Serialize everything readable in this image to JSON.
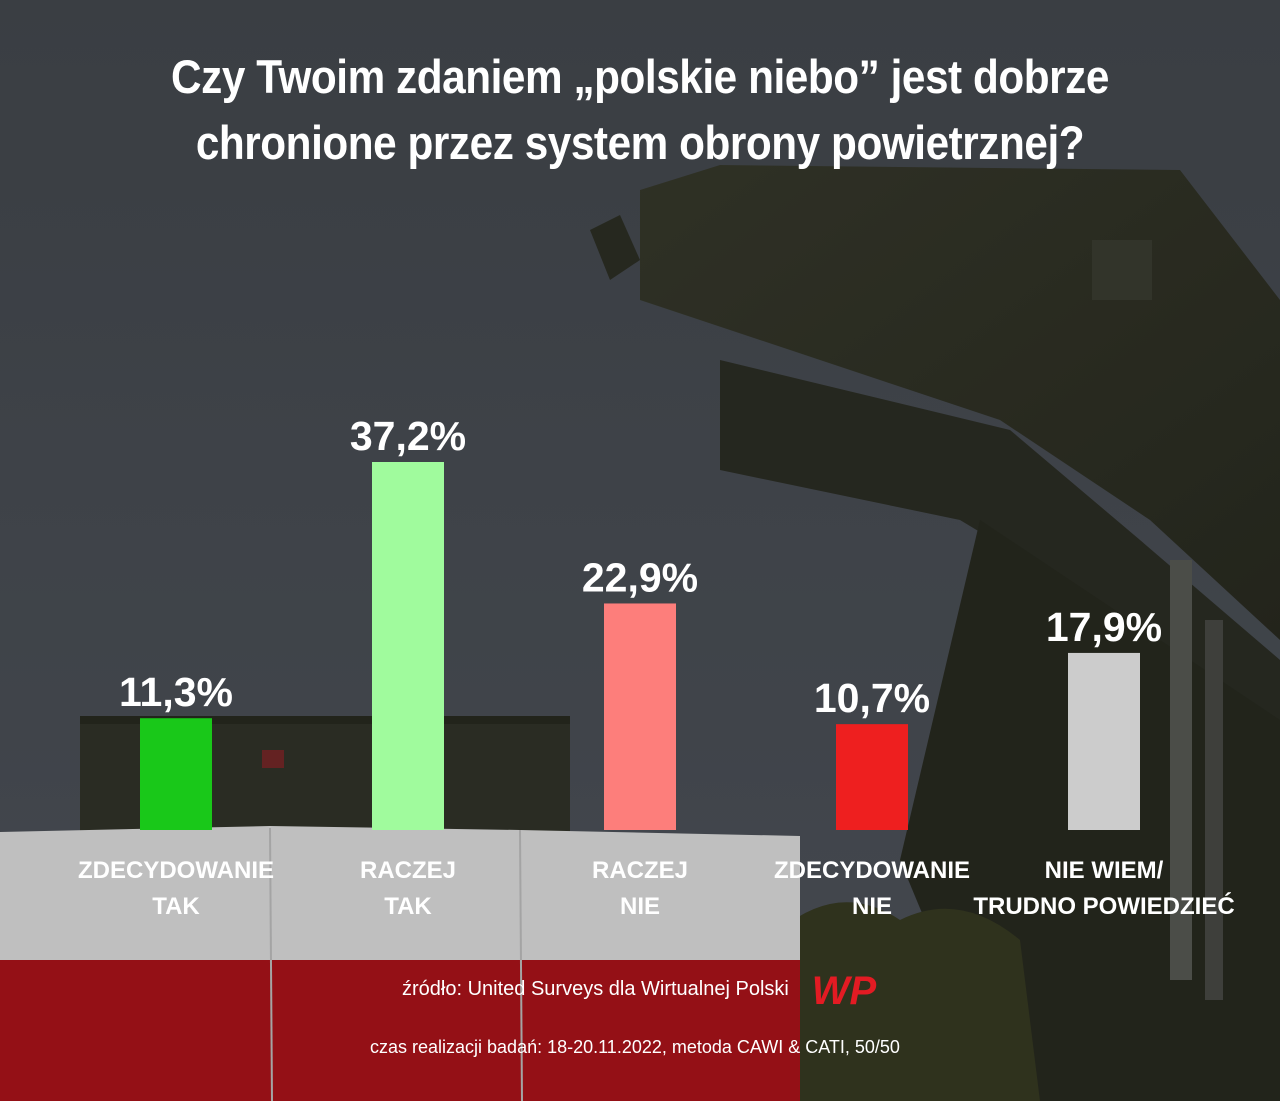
{
  "title": {
    "line1": "Czy Twoim zdaniem „polskie niebo” jest dobrze",
    "line2": "chronione przez system obrony powietrznej?"
  },
  "chart_data": {
    "type": "bar",
    "categories": [
      [
        "ZDECYDOWANIE",
        "TAK"
      ],
      [
        "RACZEJ",
        "TAK"
      ],
      [
        "RACZEJ",
        "NIE"
      ],
      [
        "ZDECYDOWANIE",
        "NIE"
      ],
      [
        "NIE WIEM/",
        "TRUDNO POWIEDZIEĆ"
      ]
    ],
    "values": [
      11.3,
      37.2,
      22.9,
      10.7,
      17.9
    ],
    "value_labels": [
      "11,3%",
      "37,2%",
      "22,9%",
      "10,7%",
      "17,9%"
    ],
    "colors": [
      "#19c819",
      "#a0fb9d",
      "#fd7e7b",
      "#ee1f1f",
      "#cccccc"
    ],
    "ylim": [
      0,
      37.2
    ],
    "grid": false,
    "legend": "none"
  },
  "source": {
    "text": "źródło: United Surveys dla Wirtualnej Polski",
    "logo": "WP"
  },
  "method": {
    "text": "czas realizacji badań: 18-20.11.2022, metoda CAWI & CATI, 50/50"
  },
  "colors": {
    "logo_red": "#e31b23",
    "sky": "#4a4f55",
    "flag_white": "#e9e9ea",
    "flag_red": "#b5141b"
  }
}
